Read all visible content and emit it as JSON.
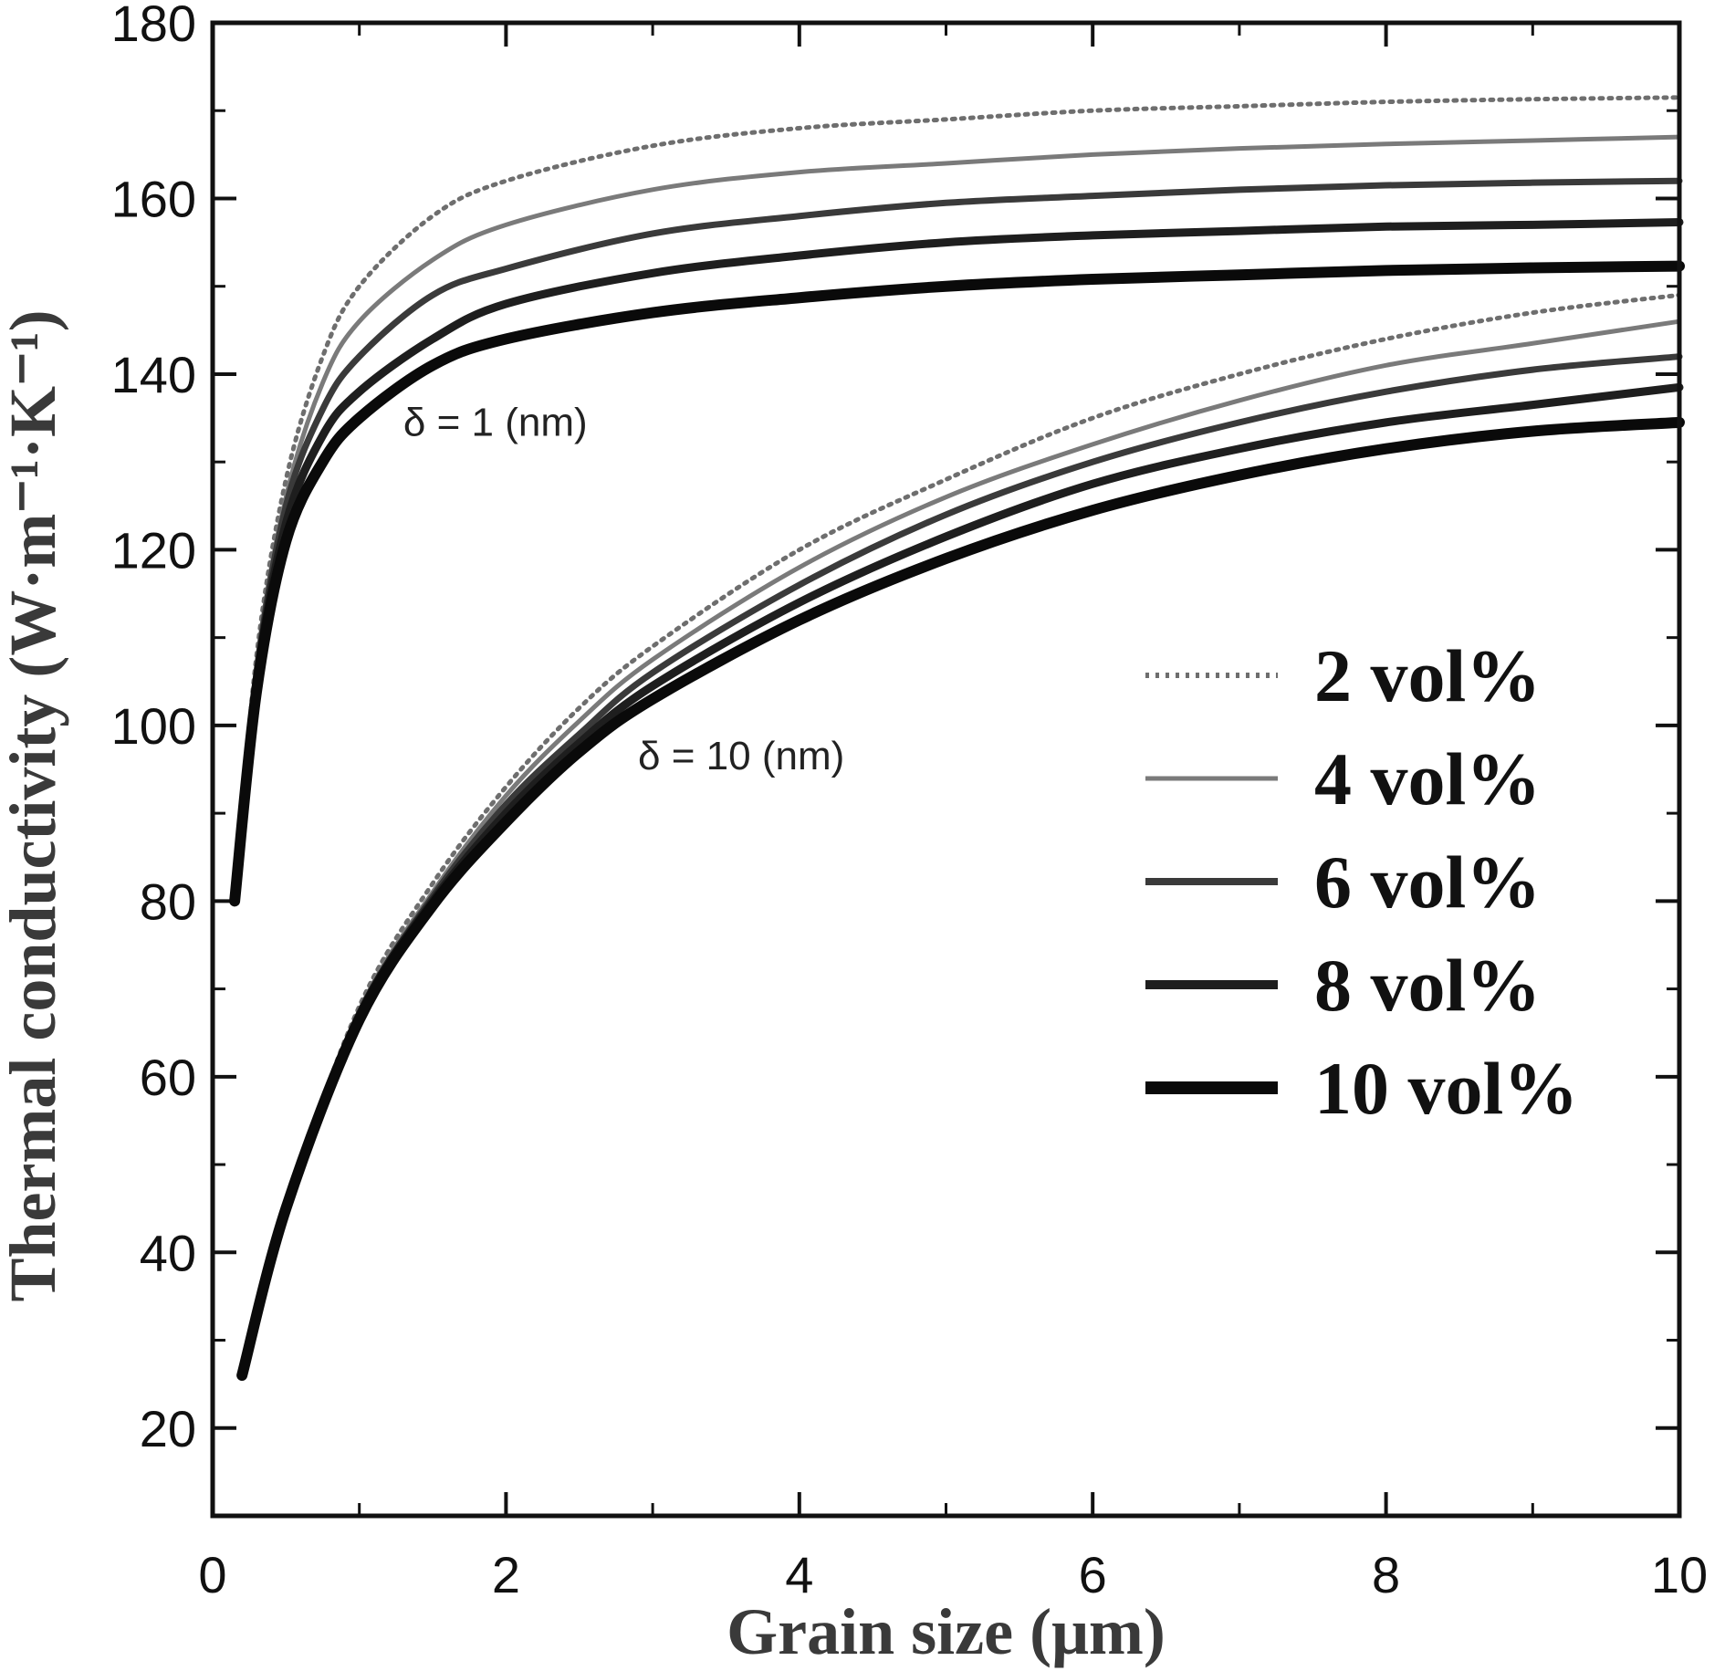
{
  "chart_data": {
    "type": "line",
    "xlabel": "Grain size (μm)",
    "ylabel": "Thermal conductivity (W·m⁻¹·K⁻¹)",
    "xlim": [
      0,
      10
    ],
    "ylim": [
      10,
      180
    ],
    "xticks": [
      0,
      2,
      4,
      6,
      8,
      10
    ],
    "yticks": [
      20,
      40,
      60,
      80,
      100,
      120,
      140,
      160,
      180
    ],
    "grid": false,
    "legend_position": "right",
    "annotations": [
      {
        "text": "δ = 1 (nm)",
        "x": 1.3,
        "y": 133
      },
      {
        "text": "δ = 10 (nm)",
        "x": 2.9,
        "y": 95
      }
    ],
    "series": [
      {
        "name": "2 vol%",
        "style": "dotted",
        "group": "δ = 1 (nm)",
        "x": [
          0.15,
          0.3,
          0.5,
          0.75,
          1,
          1.5,
          2,
          3,
          4,
          5,
          6,
          7,
          8,
          9,
          10
        ],
        "y": [
          80,
          108,
          128,
          142,
          150,
          158,
          162,
          166,
          168,
          169,
          170,
          170.5,
          171,
          171.3,
          171.5
        ]
      },
      {
        "name": "4 vol%",
        "style": "solid-thin",
        "group": "δ = 1 (nm)",
        "x": [
          0.15,
          0.3,
          0.5,
          0.75,
          1,
          1.5,
          2,
          3,
          4,
          5,
          6,
          7,
          8,
          9,
          10
        ],
        "y": [
          80,
          107,
          126,
          139,
          146,
          153,
          157,
          161,
          163,
          164,
          165,
          165.7,
          166.2,
          166.6,
          167
        ]
      },
      {
        "name": "6 vol%",
        "style": "solid-medium",
        "group": "δ = 1 (nm)",
        "x": [
          0.15,
          0.3,
          0.5,
          0.75,
          1,
          1.5,
          2,
          3,
          4,
          5,
          6,
          7,
          8,
          9,
          10
        ],
        "y": [
          80,
          106,
          125,
          136,
          142,
          149,
          152,
          156,
          158,
          159.5,
          160.3,
          161,
          161.5,
          161.8,
          162
        ]
      },
      {
        "name": "8 vol%",
        "style": "solid-thick",
        "group": "δ = 1 (nm)",
        "x": [
          0.15,
          0.3,
          0.5,
          0.75,
          1,
          1.5,
          2,
          3,
          4,
          5,
          6,
          7,
          8,
          9,
          10
        ],
        "y": [
          80,
          105,
          123,
          133,
          138,
          144,
          148,
          151.5,
          153.5,
          155,
          155.8,
          156.3,
          156.8,
          157,
          157.3
        ]
      },
      {
        "name": "10 vol%",
        "style": "solid-heavy",
        "group": "δ = 1 (nm)",
        "x": [
          0.15,
          0.3,
          0.5,
          0.75,
          1,
          1.5,
          2,
          3,
          4,
          5,
          6,
          7,
          8,
          9,
          10
        ],
        "y": [
          80,
          104,
          121,
          130,
          135,
          141,
          144,
          147,
          148.7,
          150,
          150.8,
          151.3,
          151.8,
          152.1,
          152.3
        ]
      },
      {
        "name": "2 vol%",
        "style": "dotted",
        "group": "δ = 10 (nm)",
        "x": [
          0.2,
          0.5,
          1,
          1.5,
          2,
          2.5,
          3,
          4,
          5,
          6,
          7,
          8,
          9,
          10
        ],
        "y": [
          26,
          45,
          68,
          82,
          93,
          102,
          109,
          120,
          128,
          135,
          140,
          144,
          147,
          149
        ]
      },
      {
        "name": "4 vol%",
        "style": "solid-thin",
        "group": "δ = 10 (nm)",
        "x": [
          0.2,
          0.5,
          1,
          1.5,
          2,
          2.5,
          3,
          4,
          5,
          6,
          7,
          8,
          9,
          10
        ],
        "y": [
          26,
          45,
          67.5,
          81,
          92,
          100.5,
          107.5,
          118,
          126,
          132,
          137,
          141,
          143.5,
          146
        ]
      },
      {
        "name": "6 vol%",
        "style": "solid-medium",
        "group": "δ = 10 (nm)",
        "x": [
          0.2,
          0.5,
          1,
          1.5,
          2,
          2.5,
          3,
          4,
          5,
          6,
          7,
          8,
          9,
          10
        ],
        "y": [
          26,
          45,
          67,
          80.5,
          91,
          99,
          106,
          116,
          124,
          130,
          134.5,
          138,
          140.5,
          142
        ]
      },
      {
        "name": "8 vol%",
        "style": "solid-thick",
        "group": "δ = 10 (nm)",
        "x": [
          0.2,
          0.5,
          1,
          1.5,
          2,
          2.5,
          3,
          4,
          5,
          6,
          7,
          8,
          9,
          10
        ],
        "y": [
          26,
          45,
          67,
          80,
          90,
          98,
          104.5,
          114,
          121.5,
          127.5,
          131.5,
          134.5,
          136.5,
          138.5
        ]
      },
      {
        "name": "10 vol%",
        "style": "solid-heavy",
        "group": "δ = 10 (nm)",
        "x": [
          0.2,
          0.5,
          1,
          1.5,
          2,
          2.5,
          3,
          4,
          5,
          6,
          7,
          8,
          9,
          10
        ],
        "y": [
          26,
          45,
          66.5,
          79.5,
          89,
          97,
          103,
          112,
          119,
          124.5,
          128.5,
          131.5,
          133.5,
          134.5
        ]
      }
    ],
    "legend": [
      {
        "label": "2 vol%",
        "style": "dotted"
      },
      {
        "label": "4 vol%",
        "style": "solid-thin"
      },
      {
        "label": "6 vol%",
        "style": "solid-medium"
      },
      {
        "label": "8 vol%",
        "style": "solid-thick"
      },
      {
        "label": "10 vol%",
        "style": "solid-heavy"
      }
    ],
    "styles": {
      "dotted": {
        "color": "#6e6e6e",
        "dash": "3 7"
      },
      "solid-thin": {
        "color": "#7a7a7a"
      },
      "solid-medium": {
        "color": "#3a3a3a"
      },
      "solid-thick": {
        "color": "#1e1e1e"
      },
      "solid-heavy": {
        "color": "#0a0a0a"
      }
    }
  }
}
